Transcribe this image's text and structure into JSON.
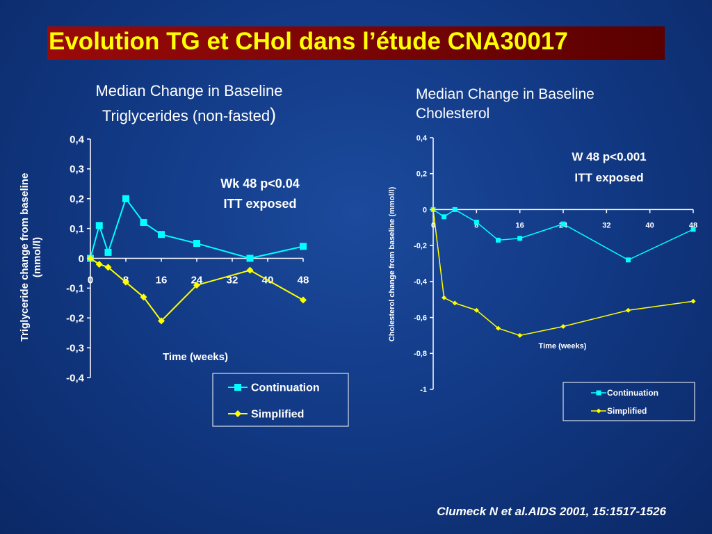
{
  "slide": {
    "title": "Evolution TG et CHol dans l’étude CNA30017",
    "citation": "Clumeck N et al.AIDS 2001, 15:1517-1526"
  },
  "colors": {
    "title_text": "#ffff00",
    "title_bar": "#8b0000",
    "continuation": "#00ffff",
    "simplified": "#ffff00",
    "background": "#123a86"
  },
  "left_heading": {
    "line1": "Median Change in Baseline",
    "line2": "Triglycerides (non-fasted",
    "paren": ")"
  },
  "right_heading": {
    "line1": "Median Change in Baseline",
    "line2": "Cholesterol"
  },
  "chart_data": [
    {
      "type": "line",
      "ylabel": "Triglyceride change from baseline (mmol/l)",
      "xlabel": "Time (weeks)",
      "ylim": [
        -0.4,
        0.4
      ],
      "xlim": [
        0,
        48
      ],
      "y_ticks": [
        "0,4",
        "0,3",
        "0,2",
        "0,1",
        "0",
        "-0,1",
        "-0,2",
        "-0,3",
        "-0,4"
      ],
      "y_tick_values": [
        0.4,
        0.3,
        0.2,
        0.1,
        0,
        -0.1,
        -0.2,
        -0.3,
        -0.4
      ],
      "x_ticks": [
        "0",
        "8",
        "16",
        "24",
        "32",
        "40",
        "48"
      ],
      "x_tick_values": [
        0,
        8,
        16,
        24,
        32,
        40,
        48
      ],
      "annotation": [
        "Wk 48 p<0.04",
        "ITT exposed"
      ],
      "legend_position": "bottom-right",
      "series": [
        {
          "name": "Continuation",
          "marker": "square",
          "x": [
            0,
            2,
            4,
            8,
            12,
            16,
            24,
            36,
            48
          ],
          "y": [
            0,
            0.11,
            0.02,
            0.2,
            0.12,
            0.08,
            0.05,
            0,
            0.04
          ]
        },
        {
          "name": "Simplified",
          "marker": "diamond",
          "x": [
            0,
            2,
            4,
            8,
            12,
            16,
            24,
            36,
            48
          ],
          "y": [
            0,
            -0.02,
            -0.03,
            -0.08,
            -0.13,
            -0.21,
            -0.09,
            -0.04,
            -0.14
          ]
        }
      ]
    },
    {
      "type": "line",
      "ylabel": "Cholesterol change from baseline (mmol/l)",
      "xlabel": "Time (weeks)",
      "ylim": [
        -1,
        0.4
      ],
      "xlim": [
        0,
        48
      ],
      "y_ticks": [
        "0,4",
        "0,2",
        "0",
        "-0,2",
        "-0,4",
        "-0,6",
        "-0,8",
        "-1"
      ],
      "y_tick_values": [
        0.4,
        0.2,
        0,
        -0.2,
        -0.4,
        -0.6,
        -0.8,
        -1
      ],
      "x_ticks": [
        "0",
        "8",
        "16",
        "24",
        "32",
        "40",
        "48"
      ],
      "x_tick_values": [
        0,
        8,
        16,
        24,
        32,
        40,
        48
      ],
      "annotation": [
        "W 48  p<0.001",
        "ITT exposed"
      ],
      "legend_position": "bottom-right",
      "series": [
        {
          "name": "Continuation",
          "marker": "square",
          "x": [
            0,
            2,
            4,
            8,
            12,
            16,
            24,
            36,
            48
          ],
          "y": [
            0,
            -0.04,
            0,
            -0.07,
            -0.17,
            -0.16,
            -0.08,
            -0.28,
            -0.11
          ]
        },
        {
          "name": "Simplified",
          "marker": "diamond",
          "x": [
            0,
            2,
            4,
            8,
            12,
            16,
            24,
            36,
            48
          ],
          "y": [
            0,
            -0.49,
            -0.52,
            -0.56,
            -0.66,
            -0.7,
            -0.65,
            -0.56,
            -0.51
          ]
        }
      ]
    }
  ]
}
